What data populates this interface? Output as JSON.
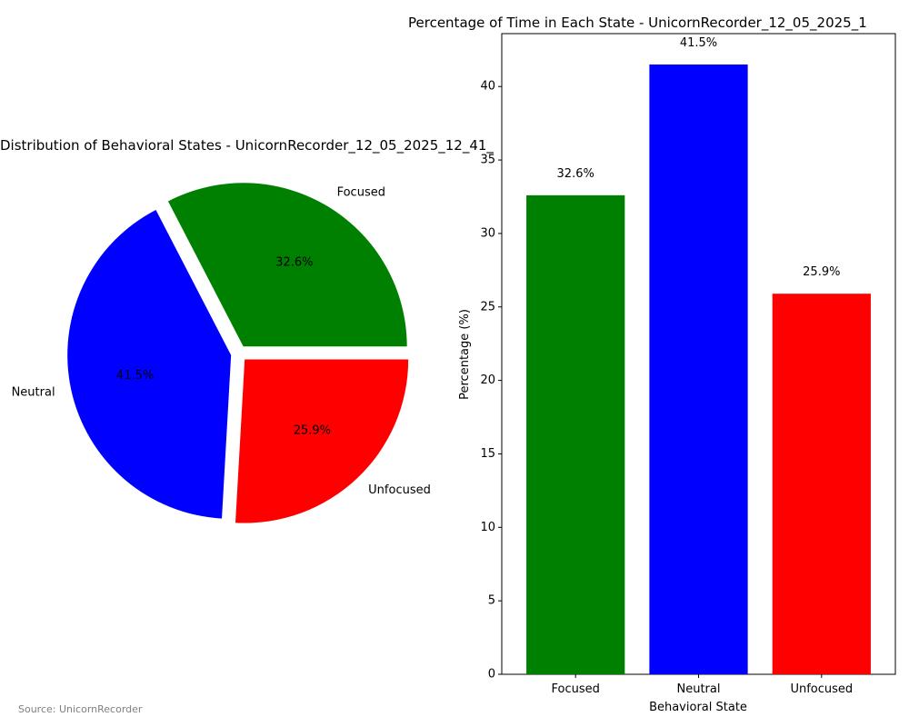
{
  "chart_data": [
    {
      "type": "pie",
      "title": "Distribution of Behavioral States - UnicornRecorder_12_05_2025_12_41_",
      "categories": [
        "Focused",
        "Neutral",
        "Unfocused"
      ],
      "values": [
        32.6,
        41.5,
        25.9
      ],
      "value_labels": [
        "32.6%",
        "41.5%",
        "25.9%"
      ],
      "colors": [
        "#008000",
        "#0000ff",
        "#ff0000"
      ],
      "exploded": true
    },
    {
      "type": "bar",
      "title": "Percentage of Time in Each State - UnicornRecorder_12_05_2025_1",
      "categories": [
        "Focused",
        "Neutral",
        "Unfocused"
      ],
      "values": [
        32.6,
        41.5,
        25.9
      ],
      "value_labels": [
        "32.6%",
        "41.5%",
        "25.9%"
      ],
      "colors": [
        "#008000",
        "#0000ff",
        "#ff0000"
      ],
      "xlabel": "Behavioral State",
      "ylabel": "Percentage (%)",
      "ylim": [
        0,
        43.6
      ],
      "yticks": [
        "0",
        "5",
        "10",
        "15",
        "20",
        "25",
        "30",
        "35",
        "40"
      ],
      "grid": false
    }
  ],
  "source_note": "Source: UnicornRecorder"
}
